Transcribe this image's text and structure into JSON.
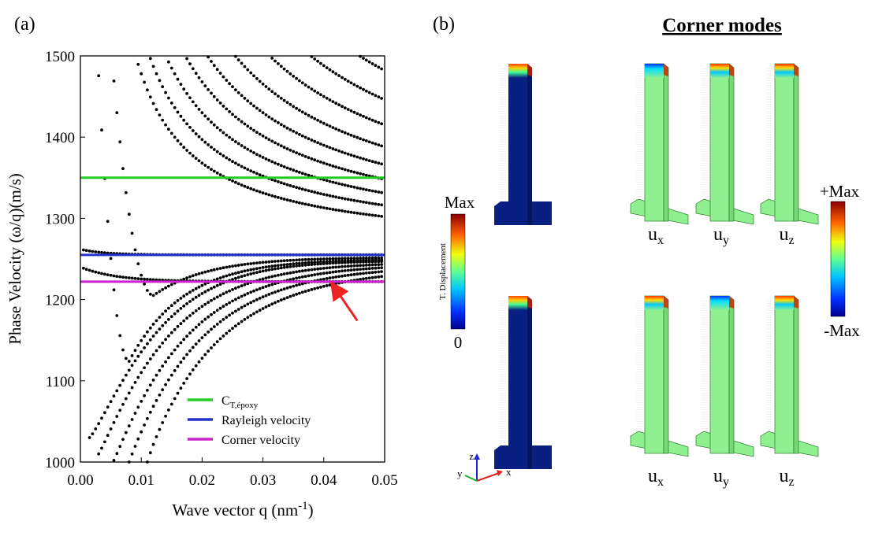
{
  "panel_a_label": "(a)",
  "panel_b_label": "(b)",
  "panel_b_title": "Corner modes",
  "chart_data": {
    "type": "scatter",
    "title": "",
    "xlabel": "Wave vector q (nm",
    "xlabel_sup": "-1",
    "xlabel_close": ")",
    "ylabel": "Phase Velocity (ω/q)(m/s)",
    "xlim": [
      0,
      0.05
    ],
    "ylim": [
      1000,
      1500
    ],
    "x_ticks": [
      "0.00",
      "0.01",
      "0.02",
      "0.03",
      "0.04",
      "0.05"
    ],
    "y_ticks": [
      "1000",
      "1100",
      "1200",
      "1300",
      "1400",
      "1500"
    ],
    "grid": false,
    "legend_position": "bottom-center",
    "reference_lines": [
      {
        "name": "C",
        "sub": "T,époxy",
        "y": 1350,
        "color": "#22cc22"
      },
      {
        "name": "Rayleigh velocity",
        "y": 1255,
        "color": "#2233cc"
      },
      {
        "name": "Corner velocity",
        "y": 1222,
        "color": "#cc22cc"
      }
    ],
    "arrow": {
      "x_from": 0.0455,
      "y_from": 1174,
      "x_to": 0.0415,
      "y_to": 1218,
      "color": "#ee2222"
    },
    "branches": [
      {
        "kind": "upper",
        "asymptote": 1258,
        "a": 2.2
      },
      {
        "kind": "upper",
        "asymptote": 1262,
        "a": 2.7
      },
      {
        "kind": "upper",
        "asymptote": 1265,
        "a": 3.3
      },
      {
        "kind": "upper",
        "asymptote": 1268,
        "a": 4.0
      },
      {
        "kind": "upper",
        "asymptote": 1270,
        "a": 4.8
      },
      {
        "kind": "upper",
        "asymptote": 1272,
        "a": 5.8
      },
      {
        "kind": "upper",
        "asymptote": 1275,
        "a": 7.0
      },
      {
        "kind": "upper",
        "asymptote": 1278,
        "a": 8.4
      },
      {
        "kind": "upper",
        "asymptote": 1282,
        "a": 10.0
      },
      {
        "kind": "upper",
        "asymptote": 1286,
        "a": 11.8
      },
      {
        "kind": "upper",
        "asymptote": 1290,
        "a": 13.8
      },
      {
        "kind": "upper",
        "asymptote": 1295,
        "a": 16.0
      },
      {
        "kind": "upper",
        "asymptote": 1300,
        "a": 18.5
      },
      {
        "kind": "upper",
        "asymptote": 1306,
        "a": 21.2
      },
      {
        "kind": "upper",
        "asymptote": 1312,
        "a": 24.2
      },
      {
        "kind": "upper",
        "asymptote": 1318,
        "a": 27.5
      },
      {
        "kind": "upper",
        "asymptote": 1325,
        "a": 31.0
      },
      {
        "kind": "upper",
        "asymptote": 1332,
        "a": 35.0
      },
      {
        "kind": "upper",
        "asymptote": 1340,
        "a": 39.5
      },
      {
        "kind": "upper",
        "asymptote": 1348,
        "a": 44.0
      },
      {
        "kind": "upper",
        "asymptote": 1357,
        "a": 49.0
      },
      {
        "kind": "upper",
        "asymptote": 1366,
        "a": 55.0
      },
      {
        "kind": "upper",
        "asymptote": 1376,
        "a": 61.0
      },
      {
        "kind": "upper",
        "asymptote": 1386,
        "a": 68.0
      },
      {
        "kind": "upper",
        "asymptote": 1398,
        "a": 76.0
      },
      {
        "kind": "upper",
        "asymptote": 1410,
        "a": 85.0
      },
      {
        "kind": "upper",
        "asymptote": 1423,
        "a": 95.0
      },
      {
        "kind": "upper",
        "asymptote": 1437,
        "a": 106.0
      },
      {
        "kind": "upper",
        "asymptote": 1452,
        "a": 118.0
      },
      {
        "kind": "upper",
        "asymptote": 1468,
        "a": 131.0
      },
      {
        "kind": "upper",
        "asymptote": 1485,
        "a": 145.0
      },
      {
        "kind": "dip",
        "asymptote": 1252,
        "min_x": 0.012,
        "min_y": 1205
      },
      {
        "kind": "dip",
        "asymptote": 1250,
        "min_x": 0.008,
        "min_y": 1124
      },
      {
        "kind": "lower",
        "asymptote": 1248,
        "x0": 0.0015,
        "ymin": 1030,
        "p": 1.2
      },
      {
        "kind": "lower",
        "asymptote": 1246,
        "x0": 0.003,
        "ymin": 1010,
        "p": 1.1
      },
      {
        "kind": "lower",
        "asymptote": 1244,
        "x0": 0.0055,
        "ymin": 1002,
        "p": 1.05
      },
      {
        "kind": "lower",
        "asymptote": 1242,
        "x0": 0.008,
        "ymin": 1000,
        "p": 1.0
      },
      {
        "kind": "lower",
        "asymptote": 1240,
        "x0": 0.011,
        "ymin": 1000,
        "p": 0.95
      },
      {
        "kind": "corner",
        "asymptote": 1222,
        "start": 1240
      },
      {
        "kind": "rayleigh",
        "asymptote": 1255,
        "start": 1262
      }
    ]
  },
  "colorbar_left": {
    "max_label": "Max",
    "min_label": "0",
    "title": "T. Displacement"
  },
  "colorbar_right": {
    "max_label": "+Max",
    "min_label": "-Max"
  },
  "mode_labels": [
    {
      "base": "u",
      "sub": "x"
    },
    {
      "base": "u",
      "sub": "y"
    },
    {
      "base": "u",
      "sub": "z"
    },
    {
      "base": "u",
      "sub": "x"
    },
    {
      "base": "u",
      "sub": "y"
    },
    {
      "base": "u",
      "sub": "z"
    }
  ],
  "axes_triad": {
    "x": "x",
    "y": "y",
    "z": "z"
  },
  "colors": {
    "pillar_dark": "#0a1f82",
    "pillar_green": "#90f090",
    "pillar_edge": "#2a7a2a"
  }
}
